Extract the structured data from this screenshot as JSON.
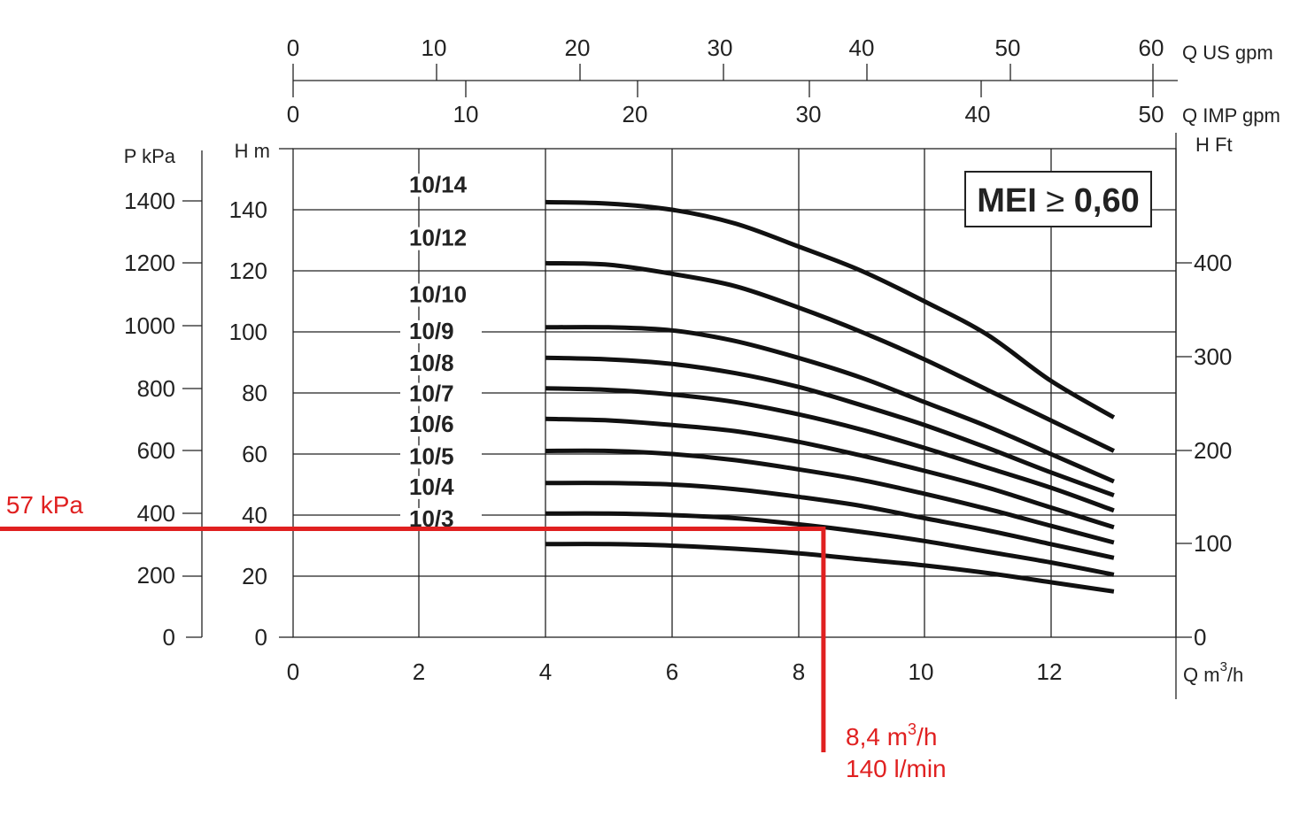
{
  "chart_data": {
    "type": "line",
    "colors": {
      "curve": "#111111",
      "grid": "#222222",
      "annotation": "#e02020"
    },
    "axes": {
      "q_m3h": {
        "label_prefix": "Q m",
        "label_sup": "3",
        "label_suffix": "/h",
        "ticks": [
          "0",
          "2",
          "4",
          "6",
          "8",
          "10",
          "12"
        ],
        "range": [
          0,
          14
        ]
      },
      "h_m": {
        "label": "H m",
        "ticks": [
          "0",
          "20",
          "40",
          "60",
          "80",
          "100",
          "120",
          "140"
        ],
        "range": [
          0,
          160
        ]
      },
      "p_kpa": {
        "label": "P kPa",
        "ticks": [
          "0",
          "200",
          "400",
          "600",
          "800",
          "1000",
          "1200",
          "1400"
        ]
      },
      "h_ft": {
        "label": "H Ft",
        "ticks": [
          "0",
          "100",
          "200",
          "300",
          "400"
        ]
      },
      "q_usgpm": {
        "label": "Q US gpm",
        "ticks": [
          "0",
          "10",
          "20",
          "30",
          "40",
          "50",
          "60"
        ]
      },
      "q_impgpm": {
        "label": "Q IMP gpm",
        "ticks": [
          "0",
          "10",
          "20",
          "30",
          "40",
          "50"
        ]
      }
    },
    "mei_badge": {
      "prefix": "MEI",
      "symbol": "≥",
      "value": "0,60"
    },
    "series": [
      {
        "name": "10/14",
        "label_y": 146,
        "points": [
          [
            4,
            142.5
          ],
          [
            5,
            142
          ],
          [
            6,
            140
          ],
          [
            7,
            135.5
          ],
          [
            8,
            128
          ],
          [
            9,
            120
          ],
          [
            10,
            110
          ],
          [
            11,
            99
          ],
          [
            12,
            84
          ],
          [
            13,
            72
          ]
        ]
      },
      {
        "name": "10/12",
        "label_y": 128.5,
        "points": [
          [
            4,
            122.5
          ],
          [
            5,
            122
          ],
          [
            6,
            119
          ],
          [
            7,
            115
          ],
          [
            8,
            108
          ],
          [
            9,
            100
          ],
          [
            10,
            91
          ],
          [
            11,
            81
          ],
          [
            12,
            71
          ],
          [
            13,
            61
          ]
        ]
      },
      {
        "name": "10/10",
        "label_y": 110,
        "points": [
          [
            4,
            101.5
          ],
          [
            5,
            101.5
          ],
          [
            6,
            100.5
          ],
          [
            7,
            97
          ],
          [
            8,
            91.5
          ],
          [
            9,
            85
          ],
          [
            10,
            77
          ],
          [
            11,
            69
          ],
          [
            12,
            60
          ],
          [
            13,
            51
          ]
        ]
      },
      {
        "name": "10/9",
        "label_y": 98,
        "points": [
          [
            4,
            91.5
          ],
          [
            5,
            91
          ],
          [
            6,
            89.5
          ],
          [
            7,
            86.5
          ],
          [
            8,
            82
          ],
          [
            9,
            76
          ],
          [
            10,
            69.5
          ],
          [
            11,
            62
          ],
          [
            12,
            54
          ],
          [
            13,
            46.5
          ]
        ]
      },
      {
        "name": "10/8",
        "label_y": 87.5,
        "points": [
          [
            4,
            81.5
          ],
          [
            5,
            81
          ],
          [
            6,
            79.5
          ],
          [
            7,
            77
          ],
          [
            8,
            73
          ],
          [
            9,
            68
          ],
          [
            10,
            62
          ],
          [
            11,
            55.5
          ],
          [
            12,
            49
          ],
          [
            13,
            41.5
          ]
        ]
      },
      {
        "name": "10/7",
        "label_y": 77.5,
        "points": [
          [
            4,
            71.5
          ],
          [
            5,
            71
          ],
          [
            6,
            69.5
          ],
          [
            7,
            67.5
          ],
          [
            8,
            64
          ],
          [
            9,
            59.5
          ],
          [
            10,
            54.5
          ],
          [
            11,
            49
          ],
          [
            12,
            42.5
          ],
          [
            13,
            36
          ]
        ]
      },
      {
        "name": "10/6",
        "label_y": 67.5,
        "points": [
          [
            4,
            61
          ],
          [
            5,
            61
          ],
          [
            6,
            60
          ],
          [
            7,
            58
          ],
          [
            8,
            55
          ],
          [
            9,
            51.5
          ],
          [
            10,
            47
          ],
          [
            11,
            42
          ],
          [
            12,
            36.5
          ],
          [
            13,
            31
          ]
        ]
      },
      {
        "name": "10/5",
        "label_y": 57,
        "points": [
          [
            4,
            50.5
          ],
          [
            5,
            50.5
          ],
          [
            6,
            50
          ],
          [
            7,
            48.5
          ],
          [
            8,
            46
          ],
          [
            9,
            43
          ],
          [
            10,
            39
          ],
          [
            11,
            35
          ],
          [
            12,
            30.5
          ],
          [
            13,
            26
          ]
        ]
      },
      {
        "name": "10/4",
        "label_y": 47,
        "points": [
          [
            4,
            40.5
          ],
          [
            5,
            40.5
          ],
          [
            6,
            40
          ],
          [
            7,
            39
          ],
          [
            8,
            37
          ],
          [
            9,
            34.5
          ],
          [
            10,
            31.5
          ],
          [
            11,
            28
          ],
          [
            12,
            24.5
          ],
          [
            13,
            20.5
          ]
        ]
      },
      {
        "name": "10/3",
        "label_y": 36.5,
        "points": [
          [
            4,
            30.5
          ],
          [
            5,
            30.5
          ],
          [
            6,
            30
          ],
          [
            7,
            29
          ],
          [
            8,
            27.5
          ],
          [
            9,
            25.5
          ],
          [
            10,
            23.5
          ],
          [
            11,
            21
          ],
          [
            12,
            18
          ],
          [
            13,
            15
          ]
        ]
      }
    ],
    "operating_point": {
      "q": 8.4,
      "h": 35.5,
      "pressure_label": "57 kPa",
      "flow_label_prefix": "8,4 m",
      "flow_label_sup": "3",
      "flow_label_suffix": "/h",
      "flow_label_2": "140 l/min"
    }
  }
}
